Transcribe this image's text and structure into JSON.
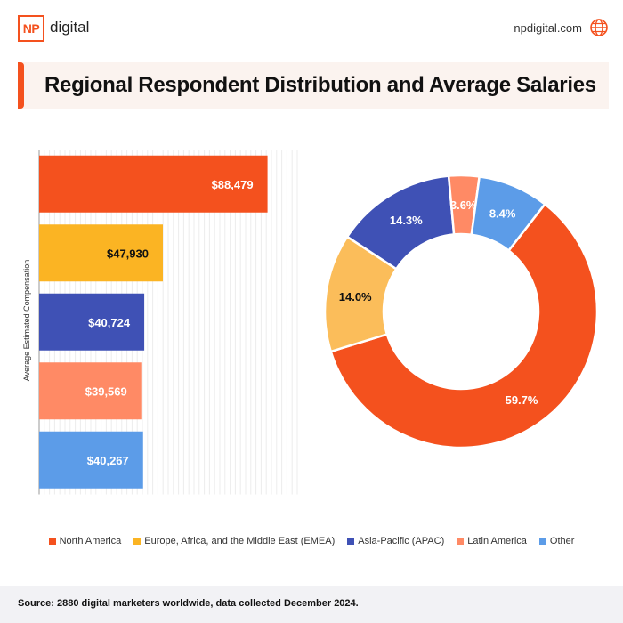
{
  "header": {
    "logo_mark": "NP",
    "logo_word": "digital",
    "site_url": "npdigital.com"
  },
  "title": "Regional Respondent Distribution and Average Salaries",
  "chart_data": [
    {
      "type": "bar",
      "orientation": "horizontal",
      "title": "Average Salaries",
      "ylabel": "Average Estimated Compensation",
      "categories": [
        "North America",
        "Europe, Africa, and the Middle East (EMEA)",
        "Asia-Pacific (APAC)",
        "Latin America",
        "Other"
      ],
      "values": [
        88479,
        47930,
        40724,
        39569,
        40267
      ],
      "value_labels": [
        "$88,479",
        "$47,930",
        "$40,724",
        "$39,569",
        "$40,267"
      ],
      "colors": [
        "#f4511e",
        "#fbb423",
        "#3f51b5",
        "#ff8a65",
        "#5c9ce8"
      ],
      "label_colors": [
        "#ffffff",
        "#111111",
        "#ffffff",
        "#ffffff",
        "#ffffff"
      ],
      "xlim": [
        0,
        100000
      ],
      "grid": true
    },
    {
      "type": "pie",
      "style": "donut",
      "title": "Regional Respondent Distribution",
      "categories": [
        "North America",
        "Europe, Africa, and the Middle East (EMEA)",
        "Asia-Pacific (APAC)",
        "Latin America",
        "Other"
      ],
      "values": [
        59.7,
        14.0,
        14.3,
        3.6,
        8.4
      ],
      "value_labels": [
        "59.7%",
        "14.0%",
        "14.3%",
        "3.6%",
        "8.4%"
      ],
      "colors": [
        "#f4511e",
        "#fbbd5a",
        "#3f51b5",
        "#ff8a65",
        "#5c9ce8"
      ],
      "label_colors": [
        "#ffffff",
        "#111111",
        "#ffffff",
        "#ffffff",
        "#ffffff"
      ]
    }
  ],
  "legend": [
    {
      "label": "North America",
      "color": "#f4511e"
    },
    {
      "label": "Europe, Africa, and the Middle East (EMEA)",
      "color": "#fbb423"
    },
    {
      "label": "Asia-Pacific (APAC)",
      "color": "#3f51b5"
    },
    {
      "label": "Latin America",
      "color": "#ff8a65"
    },
    {
      "label": "Other",
      "color": "#5c9ce8"
    }
  ],
  "footer": {
    "source": "Source: 2880 digital marketers worldwide, data collected December 2024."
  }
}
